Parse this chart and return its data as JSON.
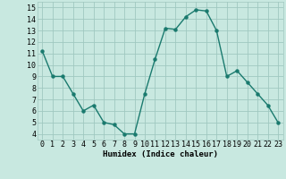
{
  "x": [
    0,
    1,
    2,
    3,
    4,
    5,
    6,
    7,
    8,
    9,
    10,
    11,
    12,
    13,
    14,
    15,
    16,
    17,
    18,
    19,
    20,
    21,
    22,
    23
  ],
  "y": [
    11.2,
    9.0,
    9.0,
    7.5,
    6.0,
    6.5,
    5.0,
    4.8,
    4.0,
    4.0,
    7.5,
    10.5,
    13.2,
    13.1,
    14.2,
    14.8,
    14.7,
    13.0,
    9.0,
    9.5,
    8.5,
    7.5,
    6.5,
    5.0
  ],
  "line_color": "#1a7a6e",
  "bg_color": "#c8e8e0",
  "grid_color": "#a0c8c0",
  "xlabel": "Humidex (Indice chaleur)",
  "xlim": [
    -0.5,
    23.5
  ],
  "ylim": [
    3.5,
    15.5
  ],
  "yticks": [
    4,
    5,
    6,
    7,
    8,
    9,
    10,
    11,
    12,
    13,
    14,
    15
  ],
  "xticks": [
    0,
    1,
    2,
    3,
    4,
    5,
    6,
    7,
    8,
    9,
    10,
    11,
    12,
    13,
    14,
    15,
    16,
    17,
    18,
    19,
    20,
    21,
    22,
    23
  ],
  "xtick_labels": [
    "0",
    "1",
    "2",
    "3",
    "4",
    "5",
    "6",
    "7",
    "8",
    "9",
    "10",
    "11",
    "12",
    "13",
    "14",
    "15",
    "16",
    "17",
    "18",
    "19",
    "20",
    "21",
    "22",
    "23"
  ],
  "label_fontsize": 6.5,
  "tick_fontsize": 6.0,
  "marker_size": 2.2,
  "line_width": 1.0
}
